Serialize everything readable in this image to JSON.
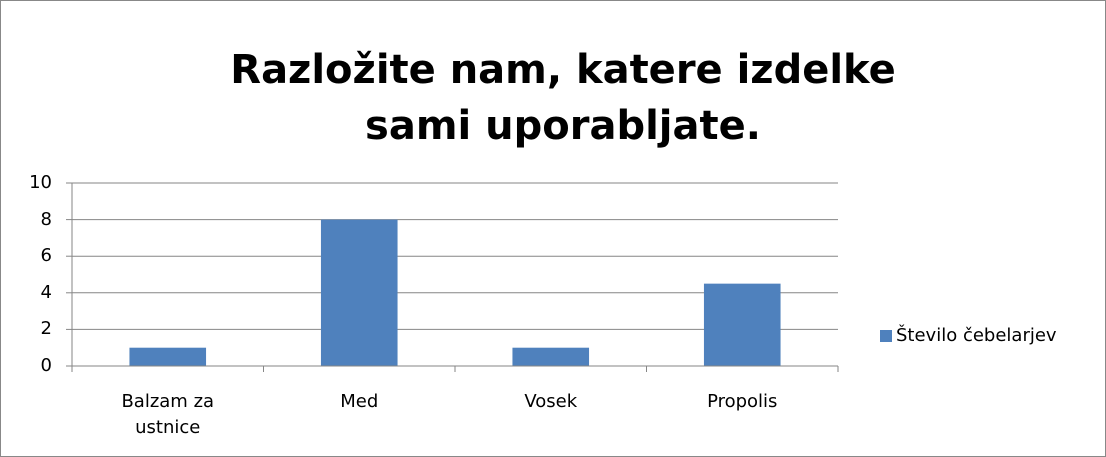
{
  "chart_data": {
    "type": "bar",
    "title": "Razložite nam, katere izdelke sami uporabljate.",
    "categories": [
      "Balzam za ustnice",
      "Med",
      "Vosek",
      "Propolis"
    ],
    "series": [
      {
        "name": "Število čebelarjev",
        "color": "#4f81bd",
        "values": [
          1,
          8,
          1,
          4.5
        ]
      }
    ],
    "ylim": [
      0,
      10
    ],
    "yticks": [
      0,
      2,
      4,
      6,
      8,
      10
    ],
    "grid": true,
    "legend": "right"
  }
}
